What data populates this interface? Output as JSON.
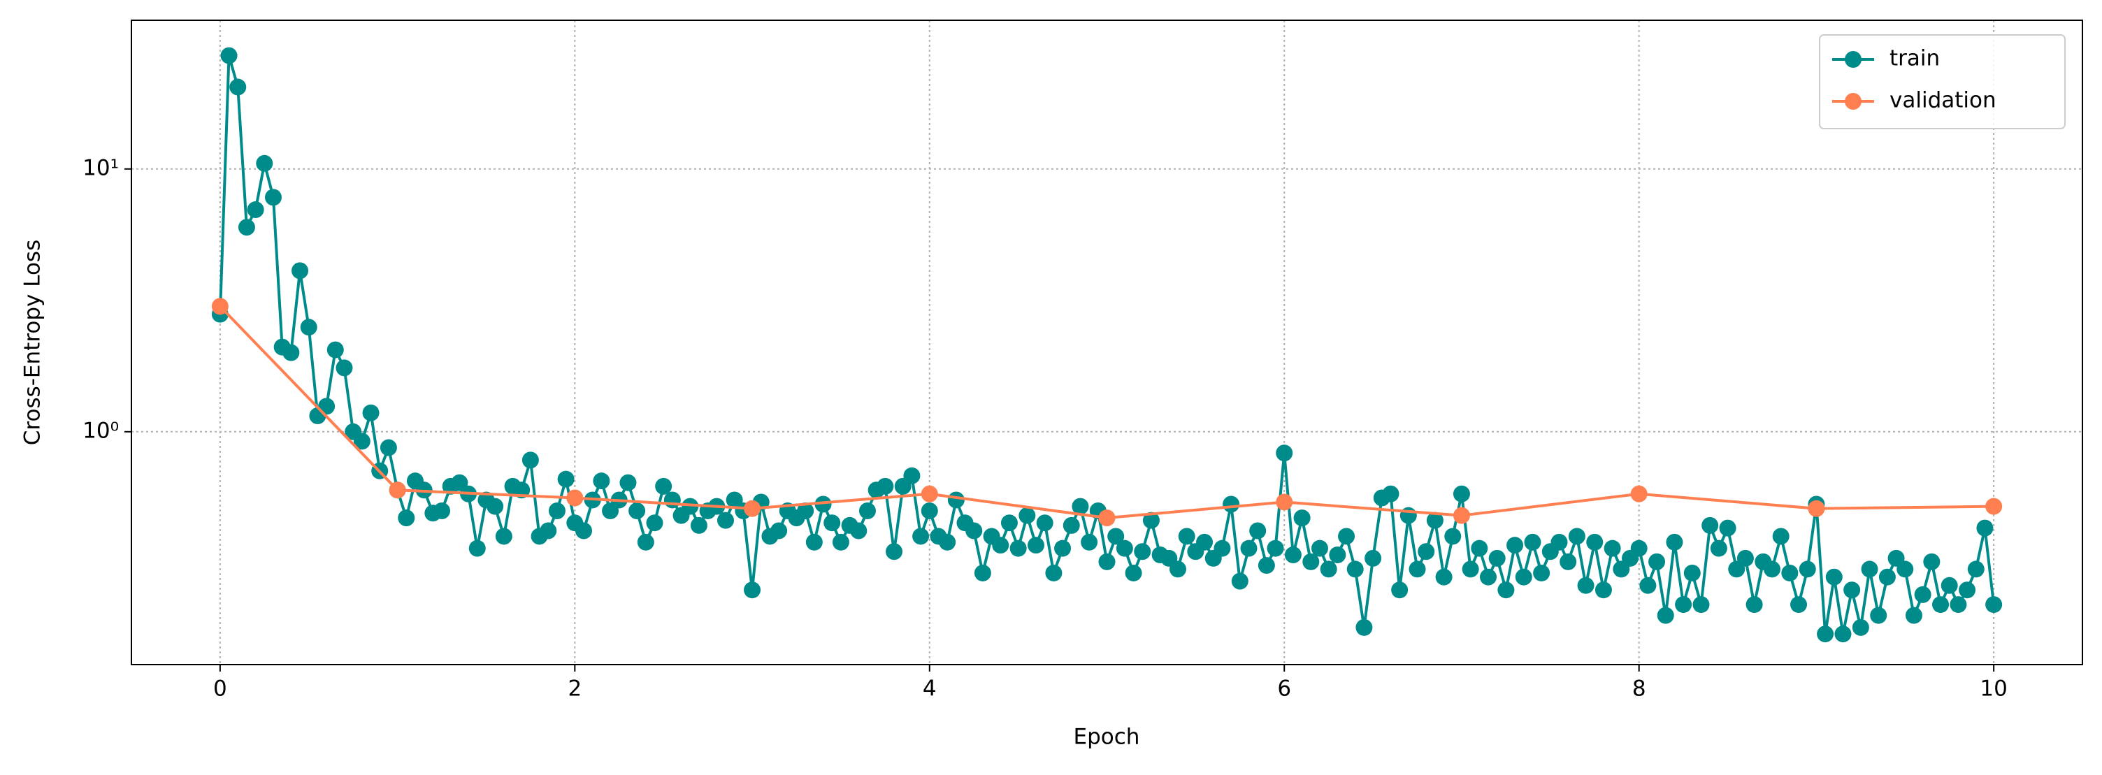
{
  "chart_data": {
    "type": "line",
    "x_label": "Epoch",
    "y_label": "Cross-Entropy Loss",
    "xlim": [
      -0.5,
      10.5
    ],
    "xticks": [
      0,
      2,
      4,
      6,
      8,
      10
    ],
    "ylim": [
      0.13,
      36.8
    ],
    "yticks": [
      {
        "value": 1,
        "label": "10⁰"
      },
      {
        "value": 10,
        "label": "10¹"
      }
    ],
    "log_y": true,
    "grid": true,
    "legend": "upper right",
    "series": [
      {
        "name": "train",
        "color": "#008b8b",
        "x": [
          0,
          0.05,
          0.1,
          0.15,
          0.2,
          0.25,
          0.3,
          0.35,
          0.4,
          0.45,
          0.5,
          0.55,
          0.6,
          0.65,
          0.7,
          0.75,
          0.8,
          0.85,
          0.9,
          0.95,
          1,
          1.05,
          1.1,
          1.15,
          1.2,
          1.25,
          1.3,
          1.35,
          1.4,
          1.45,
          1.5,
          1.55,
          1.6,
          1.65,
          1.7,
          1.75,
          1.8,
          1.85,
          1.9,
          1.95,
          2,
          2.05,
          2.1,
          2.15,
          2.2,
          2.25,
          2.3,
          2.35,
          2.4,
          2.45,
          2.5,
          2.55,
          2.6,
          2.65,
          2.7,
          2.75,
          2.8,
          2.85,
          2.9,
          2.95,
          3,
          3.05,
          3.1,
          3.15,
          3.2,
          3.25,
          3.3,
          3.35,
          3.4,
          3.45,
          3.5,
          3.55,
          3.6,
          3.65,
          3.7,
          3.75,
          3.8,
          3.85,
          3.9,
          3.95,
          4,
          4.05,
          4.1,
          4.15,
          4.2,
          4.25,
          4.3,
          4.35,
          4.4,
          4.45,
          4.5,
          4.55,
          4.6,
          4.65,
          4.7,
          4.75,
          4.8,
          4.85,
          4.9,
          4.95,
          5,
          5.05,
          5.1,
          5.15,
          5.2,
          5.25,
          5.3,
          5.35,
          5.4,
          5.45,
          5.5,
          5.55,
          5.6,
          5.65,
          5.7,
          5.75,
          5.8,
          5.85,
          5.9,
          5.95,
          6,
          6.05,
          6.1,
          6.15,
          6.2,
          6.25,
          6.3,
          6.35,
          6.4,
          6.45,
          6.5,
          6.55,
          6.6,
          6.65,
          6.7,
          6.75,
          6.8,
          6.85,
          6.9,
          6.95,
          7,
          7.05,
          7.1,
          7.15,
          7.2,
          7.25,
          7.3,
          7.35,
          7.4,
          7.45,
          7.5,
          7.55,
          7.6,
          7.65,
          7.7,
          7.75,
          7.8,
          7.85,
          7.9,
          7.95,
          8,
          8.05,
          8.1,
          8.15,
          8.2,
          8.25,
          8.3,
          8.35,
          8.4,
          8.45,
          8.5,
          8.55,
          8.6,
          8.65,
          8.7,
          8.75,
          8.8,
          8.85,
          8.9,
          8.95,
          9,
          9.05,
          9.1,
          9.15,
          9.2,
          9.25,
          9.3,
          9.35,
          9.4,
          9.45,
          9.5,
          9.55,
          9.6,
          9.65,
          9.7,
          9.75,
          9.8,
          9.85,
          9.9,
          9.95,
          10
        ],
        "values": [
          2.8,
          27,
          20.5,
          6,
          7,
          10.5,
          7.8,
          2.1,
          2.0,
          4.1,
          2.5,
          1.15,
          1.25,
          2.05,
          1.75,
          1.0,
          0.92,
          1.18,
          0.71,
          0.87,
          0.6,
          0.47,
          0.65,
          0.6,
          0.49,
          0.5,
          0.62,
          0.64,
          0.58,
          0.36,
          0.55,
          0.52,
          0.4,
          0.62,
          0.6,
          0.78,
          0.4,
          0.42,
          0.5,
          0.66,
          0.45,
          0.42,
          0.55,
          0.65,
          0.5,
          0.55,
          0.64,
          0.5,
          0.38,
          0.45,
          0.62,
          0.55,
          0.48,
          0.52,
          0.44,
          0.5,
          0.52,
          0.46,
          0.55,
          0.5,
          0.25,
          0.54,
          0.4,
          0.42,
          0.5,
          0.47,
          0.5,
          0.38,
          0.53,
          0.45,
          0.38,
          0.44,
          0.42,
          0.5,
          0.6,
          0.62,
          0.35,
          0.62,
          0.68,
          0.4,
          0.5,
          0.4,
          0.38,
          0.55,
          0.45,
          0.42,
          0.29,
          0.4,
          0.37,
          0.45,
          0.36,
          0.48,
          0.37,
          0.45,
          0.29,
          0.36,
          0.44,
          0.52,
          0.38,
          0.5,
          0.32,
          0.4,
          0.36,
          0.29,
          0.35,
          0.46,
          0.34,
          0.33,
          0.3,
          0.4,
          0.35,
          0.38,
          0.33,
          0.36,
          0.53,
          0.27,
          0.36,
          0.42,
          0.31,
          0.36,
          0.83,
          0.34,
          0.47,
          0.32,
          0.36,
          0.3,
          0.34,
          0.4,
          0.3,
          0.18,
          0.33,
          0.56,
          0.58,
          0.25,
          0.48,
          0.3,
          0.35,
          0.46,
          0.28,
          0.4,
          0.58,
          0.3,
          0.36,
          0.28,
          0.33,
          0.25,
          0.37,
          0.28,
          0.38,
          0.29,
          0.35,
          0.38,
          0.32,
          0.4,
          0.26,
          0.38,
          0.25,
          0.36,
          0.3,
          0.33,
          0.36,
          0.26,
          0.32,
          0.2,
          0.38,
          0.22,
          0.29,
          0.22,
          0.44,
          0.36,
          0.43,
          0.3,
          0.33,
          0.22,
          0.32,
          0.3,
          0.4,
          0.29,
          0.22,
          0.3,
          0.53,
          0.17,
          0.28,
          0.17,
          0.25,
          0.18,
          0.3,
          0.2,
          0.28,
          0.33,
          0.3,
          0.2,
          0.24,
          0.32,
          0.22,
          0.26,
          0.22,
          0.25,
          0.3,
          0.43,
          0.22
        ]
      },
      {
        "name": "validation",
        "color": "#ff7f50",
        "x": [
          0,
          1,
          2,
          3,
          4,
          5,
          6,
          7,
          8,
          9,
          10
        ],
        "values": [
          3.0,
          0.6,
          0.56,
          0.51,
          0.58,
          0.47,
          0.54,
          0.48,
          0.58,
          0.51,
          0.52
        ]
      }
    ]
  }
}
